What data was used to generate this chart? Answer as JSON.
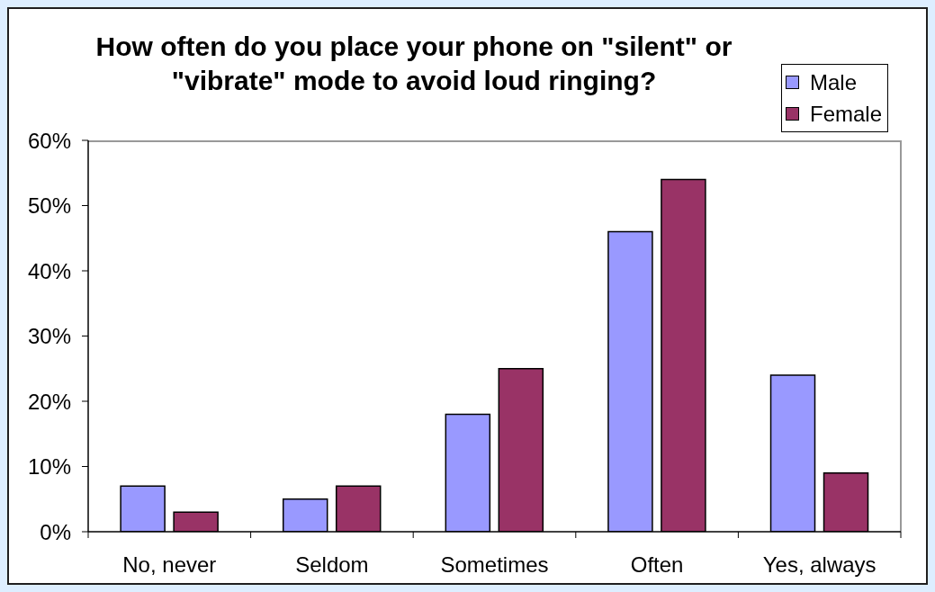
{
  "chart_data": {
    "type": "bar",
    "title": "How often do you place your phone on \"silent\" or \"vibrate\" mode to avoid loud ringing?",
    "categories": [
      "No, never",
      "Seldom",
      "Sometimes",
      "Often",
      "Yes, always"
    ],
    "series": [
      {
        "name": "Male",
        "color": "#9999ff",
        "values": [
          7,
          5,
          18,
          46,
          24
        ]
      },
      {
        "name": "Female",
        "color": "#993366",
        "values": [
          3,
          7,
          25,
          54,
          9
        ]
      }
    ],
    "ylim": [
      0,
      60
    ],
    "yticks": [
      {
        "value": 0,
        "label": "0%"
      },
      {
        "value": 10,
        "label": "10%"
      },
      {
        "value": 20,
        "label": "20%"
      },
      {
        "value": 30,
        "label": "30%"
      },
      {
        "value": 40,
        "label": "40%"
      },
      {
        "value": 50,
        "label": "50%"
      },
      {
        "value": 60,
        "label": "60%"
      }
    ],
    "legend": "top right"
  }
}
